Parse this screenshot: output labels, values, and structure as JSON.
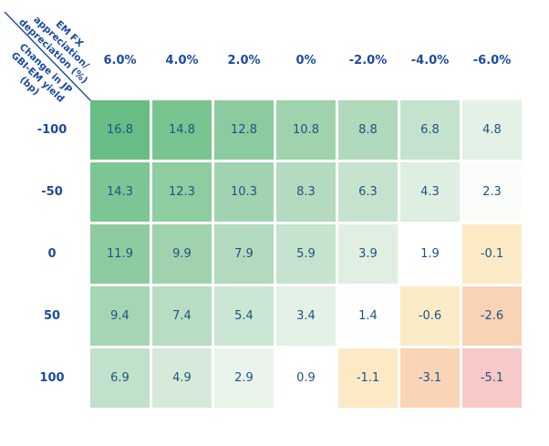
{
  "colors": {
    "label_navy": "#1c4a9e",
    "value_navy": "#1f547f",
    "background": "#ffffff"
  },
  "corner_header": {
    "x_title_lines": [
      "EM FX",
      "appreciation/",
      "depreciation (%)"
    ],
    "y_title_lines": [
      "Change in JP",
      "GBI-EM yield",
      "(bp)"
    ]
  },
  "chart_data": {
    "type": "heatmap",
    "x_axis_title": "EM FX appreciation/depreciation (%)",
    "y_axis_title": "Change in JP GBI-EM yield (bp)",
    "columns": [
      "6.0%",
      "4.0%",
      "2.0%",
      "0%",
      "-2.0%",
      "-4.0%",
      "-6.0%"
    ],
    "rows": [
      "-100",
      "-50",
      "0",
      "50",
      "100"
    ],
    "values": [
      [
        16.8,
        14.8,
        12.8,
        10.8,
        8.8,
        6.8,
        4.8
      ],
      [
        14.3,
        12.3,
        10.3,
        8.3,
        6.3,
        4.3,
        2.3
      ],
      [
        11.9,
        9.9,
        7.9,
        5.9,
        3.9,
        1.9,
        -0.1
      ],
      [
        9.4,
        7.4,
        5.4,
        3.4,
        1.4,
        -0.6,
        -2.6
      ],
      [
        6.9,
        4.9,
        2.9,
        0.9,
        -1.1,
        -3.1,
        -5.1
      ]
    ],
    "cell_colors": [
      [
        "#68bc85",
        "#7ac492",
        "#8ccb9f",
        "#9fd2ad",
        "#b1d9bc",
        "#c4e2cd",
        "#e3f1e6"
      ],
      [
        "#7ec595",
        "#90cca2",
        "#a2d3b0",
        "#b4dbbf",
        "#c6e3ce",
        "#deeee1",
        "#f9fcf9"
      ],
      [
        "#8fcba1",
        "#a1d2ae",
        "#b3dabe",
        "#c6e3ce",
        "#e0efe2",
        "#ffffff",
        "#fdebc8"
      ],
      [
        "#a6d5b3",
        "#b8ddc2",
        "#cbe6d3",
        "#e4f1e6",
        "#fdfefd",
        "#fcebc7",
        "#f9d3b5"
      ],
      [
        "#c2e1ca",
        "#d5ead9",
        "#e9f4eb",
        "#ffffff",
        "#fde9c6",
        "#fad4b7",
        "#f7c9c8"
      ]
    ],
    "color_scale": {
      "positive_high": "#68bc85",
      "near_zero": "#ffffff",
      "negative_mild": "#fdebc8",
      "negative_low": "#f7c9c8"
    },
    "grid": false,
    "legend": false
  }
}
